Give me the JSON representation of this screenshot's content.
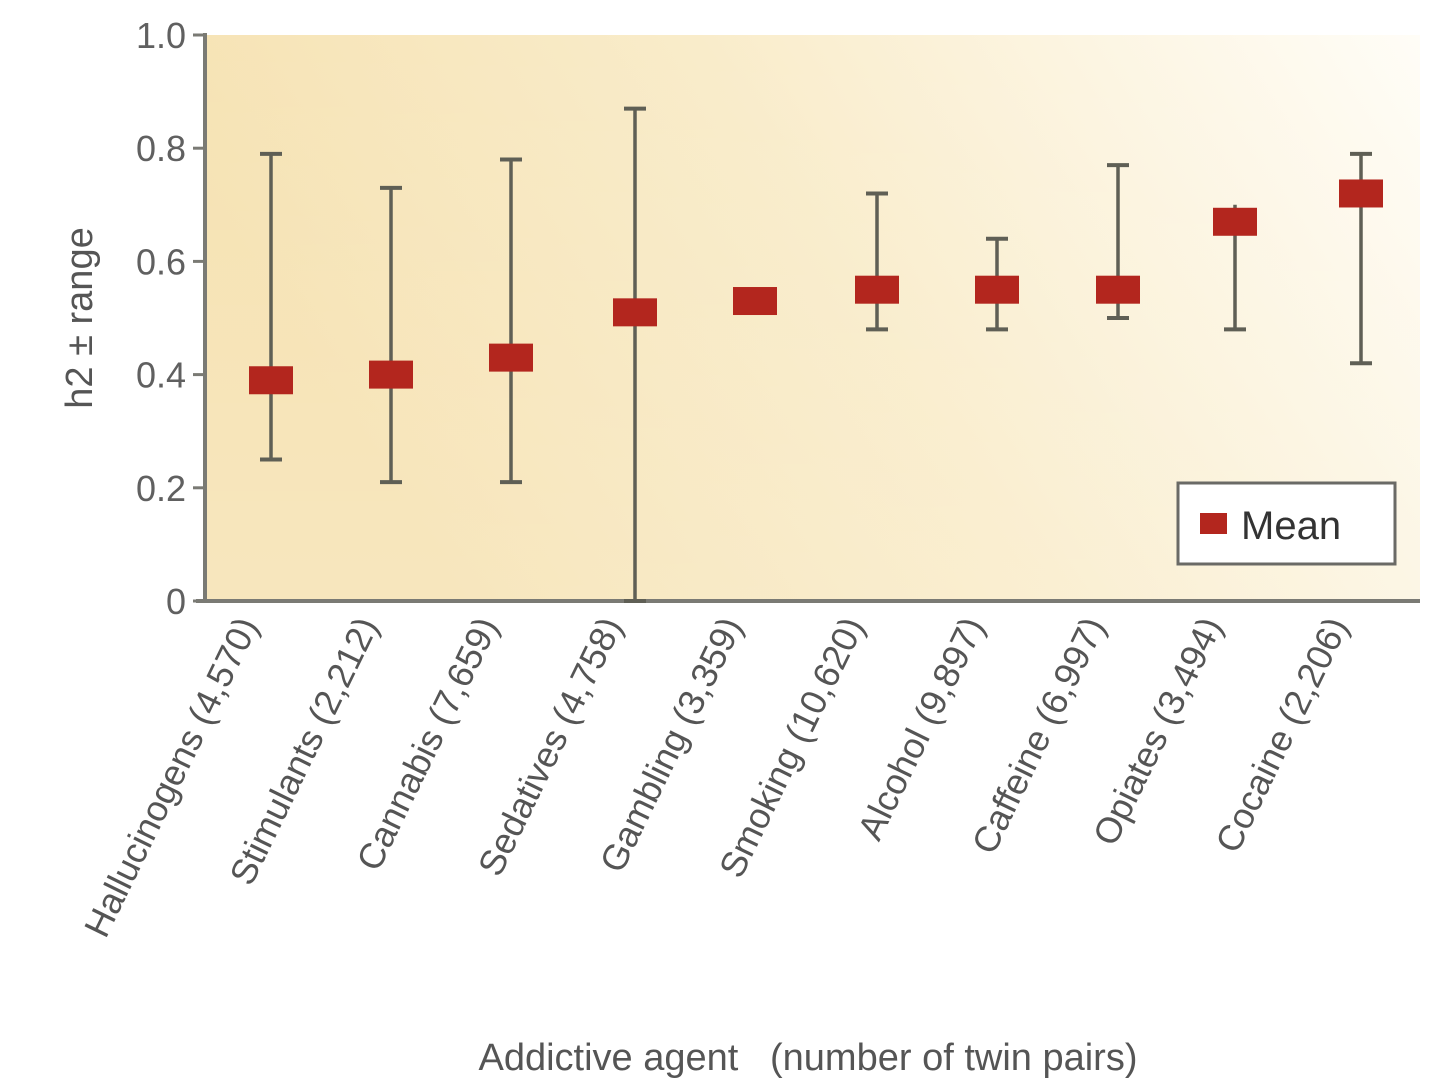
{
  "chart_data": {
    "type": "scatter",
    "subtype": "mean_with_range_errorbars",
    "title": "",
    "xlabel": "Addictive agent   (number of twin pairs)",
    "ylabel": "h2 ± range",
    "ylim": [
      0,
      1.0
    ],
    "yticks": [
      "0",
      "0.2",
      "0.4",
      "0.6",
      "0.8",
      "1.0"
    ],
    "ytick_values": [
      0,
      0.2,
      0.4,
      0.6,
      0.8,
      1.0
    ],
    "grid": false,
    "legend": {
      "position": "lower right",
      "entries": [
        {
          "label": "Mean",
          "marker": "square",
          "color": "#b3261e"
        }
      ]
    },
    "categories": [
      "Hallucinogens (4,570)",
      "Stimulants (2,212)",
      "Cannabis (7,659)",
      "Sedatives (4,758)",
      "Gambling (3,359)",
      "Smoking (10,620)",
      "Alcohol (9,897)",
      "Caffeine (6,997)",
      "Opiates (3,494)",
      "Cocaine (2,206)"
    ],
    "twin_pairs": [
      4570,
      2212,
      7659,
      4758,
      3359,
      10620,
      9897,
      6997,
      3494,
      2206
    ],
    "series": [
      {
        "name": "Mean",
        "values": [
          0.39,
          0.4,
          0.43,
          0.51,
          0.53,
          0.55,
          0.55,
          0.55,
          0.67,
          0.72
        ]
      },
      {
        "name": "Range low",
        "values": [
          0.25,
          0.21,
          0.21,
          0.0,
          0.53,
          0.48,
          0.48,
          0.5,
          0.48,
          0.42
        ]
      },
      {
        "name": "Range high",
        "values": [
          0.79,
          0.73,
          0.78,
          0.87,
          0.53,
          0.72,
          0.64,
          0.77,
          0.7,
          0.79
        ]
      }
    ],
    "colors": {
      "mean_marker": "#b3261e",
      "errorbar": "#5f5f55",
      "axis": "#7a7a74",
      "bg_left": "#f6e3b4",
      "bg_right": "#fffcf5"
    }
  },
  "legend": {
    "label": "Mean"
  }
}
